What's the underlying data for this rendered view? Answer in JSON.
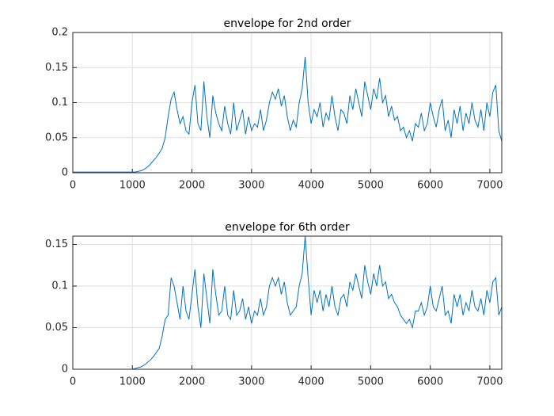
{
  "chart_data": [
    {
      "type": "line",
      "title": "envelope for 2nd order",
      "color": "#0072bd",
      "grid": true,
      "xlim": [
        0,
        7200
      ],
      "xticks": [
        0,
        1000,
        2000,
        3000,
        4000,
        5000,
        6000,
        7000
      ],
      "ylim": [
        0,
        0.2
      ],
      "yticks": [
        0,
        0.05,
        0.1,
        0.15,
        0.2
      ],
      "x": [
        0,
        50,
        100,
        150,
        200,
        250,
        300,
        350,
        400,
        450,
        500,
        550,
        600,
        650,
        700,
        750,
        800,
        850,
        900,
        950,
        1000,
        1050,
        1100,
        1150,
        1200,
        1250,
        1300,
        1350,
        1400,
        1450,
        1500,
        1550,
        1600,
        1650,
        1700,
        1750,
        1800,
        1850,
        1900,
        1950,
        2000,
        2050,
        2100,
        2150,
        2200,
        2250,
        2300,
        2350,
        2400,
        2450,
        2500,
        2550,
        2600,
        2650,
        2700,
        2750,
        2800,
        2850,
        2900,
        2950,
        3000,
        3050,
        3100,
        3150,
        3200,
        3250,
        3300,
        3350,
        3400,
        3450,
        3500,
        3550,
        3600,
        3650,
        3700,
        3750,
        3800,
        3850,
        3900,
        3950,
        4000,
        4050,
        4100,
        4150,
        4200,
        4250,
        4300,
        4350,
        4400,
        4450,
        4500,
        4550,
        4600,
        4650,
        4700,
        4750,
        4800,
        4850,
        4900,
        4950,
        5000,
        5050,
        5100,
        5150,
        5200,
        5250,
        5300,
        5350,
        5400,
        5450,
        5500,
        5550,
        5600,
        5650,
        5700,
        5750,
        5800,
        5850,
        5900,
        5950,
        6000,
        6050,
        6100,
        6150,
        6200,
        6250,
        6300,
        6350,
        6400,
        6450,
        6500,
        6550,
        6600,
        6650,
        6700,
        6750,
        6800,
        6850,
        6900,
        6950,
        7000,
        7050,
        7100,
        7150,
        7200
      ],
      "values": [
        0.001,
        0.001,
        0.001,
        0.001,
        0.001,
        0.001,
        0.001,
        0.001,
        0.001,
        0.001,
        0.001,
        0.001,
        0.001,
        0.001,
        0.001,
        0.001,
        0.001,
        0.001,
        0.001,
        0.001,
        0.001,
        0.001,
        0.002,
        0.003,
        0.005,
        0.008,
        0.012,
        0.017,
        0.022,
        0.028,
        0.035,
        0.05,
        0.08,
        0.105,
        0.115,
        0.09,
        0.07,
        0.08,
        0.06,
        0.055,
        0.1,
        0.125,
        0.07,
        0.06,
        0.13,
        0.08,
        0.05,
        0.11,
        0.085,
        0.07,
        0.06,
        0.095,
        0.07,
        0.055,
        0.1,
        0.06,
        0.075,
        0.09,
        0.055,
        0.08,
        0.06,
        0.07,
        0.065,
        0.09,
        0.06,
        0.075,
        0.1,
        0.115,
        0.105,
        0.12,
        0.095,
        0.11,
        0.08,
        0.06,
        0.075,
        0.065,
        0.1,
        0.12,
        0.165,
        0.1,
        0.07,
        0.09,
        0.08,
        0.1,
        0.065,
        0.085,
        0.075,
        0.11,
        0.08,
        0.06,
        0.09,
        0.085,
        0.07,
        0.11,
        0.09,
        0.12,
        0.1,
        0.08,
        0.13,
        0.11,
        0.09,
        0.12,
        0.105,
        0.135,
        0.1,
        0.11,
        0.08,
        0.095,
        0.075,
        0.08,
        0.06,
        0.065,
        0.05,
        0.06,
        0.045,
        0.07,
        0.065,
        0.085,
        0.06,
        0.07,
        0.1,
        0.08,
        0.065,
        0.09,
        0.105,
        0.06,
        0.075,
        0.05,
        0.09,
        0.07,
        0.095,
        0.06,
        0.085,
        0.07,
        0.1,
        0.075,
        0.065,
        0.09,
        0.06,
        0.1,
        0.08,
        0.115,
        0.125,
        0.06,
        0.045
      ]
    },
    {
      "type": "line",
      "title": "envelope for 6th order",
      "color": "#0072bd",
      "grid": true,
      "xlim": [
        0,
        7200
      ],
      "xticks": [
        0,
        1000,
        2000,
        3000,
        4000,
        5000,
        6000,
        7000
      ],
      "ylim": [
        0,
        0.16
      ],
      "yticks": [
        0,
        0.05,
        0.1,
        0.15
      ],
      "x": [
        0,
        50,
        100,
        150,
        200,
        250,
        300,
        350,
        400,
        450,
        500,
        550,
        600,
        650,
        700,
        750,
        800,
        850,
        900,
        950,
        1000,
        1050,
        1100,
        1150,
        1200,
        1250,
        1300,
        1350,
        1400,
        1450,
        1500,
        1550,
        1600,
        1650,
        1700,
        1750,
        1800,
        1850,
        1900,
        1950,
        2000,
        2050,
        2100,
        2150,
        2200,
        2250,
        2300,
        2350,
        2400,
        2450,
        2500,
        2550,
        2600,
        2650,
        2700,
        2750,
        2800,
        2850,
        2900,
        2950,
        3000,
        3050,
        3100,
        3150,
        3200,
        3250,
        3300,
        3350,
        3400,
        3450,
        3500,
        3550,
        3600,
        3650,
        3700,
        3750,
        3800,
        3850,
        3900,
        3950,
        4000,
        4050,
        4100,
        4150,
        4200,
        4250,
        4300,
        4350,
        4400,
        4450,
        4500,
        4550,
        4600,
        4650,
        4700,
        4750,
        4800,
        4850,
        4900,
        4950,
        5000,
        5050,
        5100,
        5150,
        5200,
        5250,
        5300,
        5350,
        5400,
        5450,
        5500,
        5550,
        5600,
        5650,
        5700,
        5750,
        5800,
        5850,
        5900,
        5950,
        6000,
        6050,
        6100,
        6150,
        6200,
        6250,
        6300,
        6350,
        6400,
        6450,
        6500,
        6550,
        6600,
        6650,
        6700,
        6750,
        6800,
        6850,
        6900,
        6950,
        7000,
        7050,
        7100,
        7150,
        7200
      ],
      "values": [
        0,
        0,
        0,
        0,
        0,
        0,
        0,
        0,
        0,
        0,
        0,
        0,
        0,
        0,
        0,
        0,
        0,
        0,
        0,
        0,
        0,
        0.001,
        0.002,
        0.003,
        0.005,
        0.008,
        0.011,
        0.015,
        0.02,
        0.025,
        0.04,
        0.06,
        0.065,
        0.11,
        0.1,
        0.08,
        0.06,
        0.1,
        0.07,
        0.06,
        0.09,
        0.12,
        0.075,
        0.05,
        0.115,
        0.085,
        0.055,
        0.12,
        0.09,
        0.065,
        0.07,
        0.1,
        0.065,
        0.06,
        0.095,
        0.065,
        0.07,
        0.085,
        0.06,
        0.075,
        0.055,
        0.07,
        0.065,
        0.085,
        0.065,
        0.075,
        0.1,
        0.11,
        0.1,
        0.11,
        0.09,
        0.105,
        0.08,
        0.065,
        0.07,
        0.075,
        0.1,
        0.115,
        0.16,
        0.11,
        0.065,
        0.095,
        0.08,
        0.095,
        0.07,
        0.09,
        0.075,
        0.1,
        0.075,
        0.065,
        0.085,
        0.09,
        0.075,
        0.105,
        0.095,
        0.115,
        0.1,
        0.085,
        0.125,
        0.105,
        0.09,
        0.115,
        0.1,
        0.125,
        0.1,
        0.105,
        0.085,
        0.09,
        0.08,
        0.075,
        0.065,
        0.06,
        0.055,
        0.06,
        0.05,
        0.07,
        0.07,
        0.08,
        0.065,
        0.075,
        0.1,
        0.075,
        0.07,
        0.085,
        0.1,
        0.065,
        0.07,
        0.055,
        0.09,
        0.075,
        0.09,
        0.065,
        0.08,
        0.07,
        0.095,
        0.075,
        0.07,
        0.085,
        0.065,
        0.095,
        0.08,
        0.105,
        0.11,
        0.065,
        0.075
      ]
    }
  ]
}
